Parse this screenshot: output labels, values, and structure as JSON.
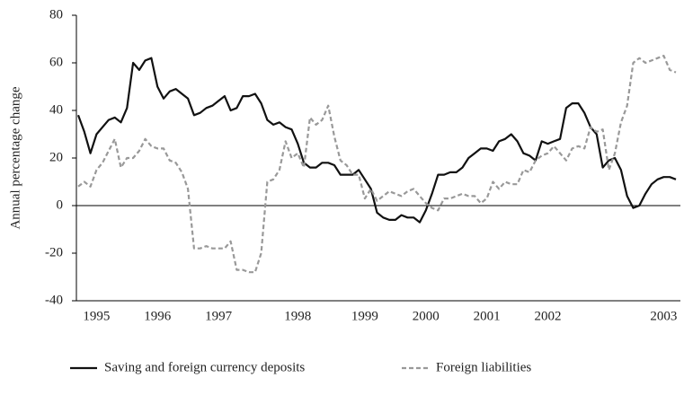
{
  "chart_data": {
    "type": "line",
    "y_label": "Annual percentage change",
    "categories": [
      null,
      null,
      null,
      "1995",
      null,
      null,
      null,
      null,
      null,
      null,
      null,
      null,
      null,
      "1996",
      null,
      null,
      null,
      null,
      null,
      null,
      null,
      null,
      null,
      "1997",
      null,
      null,
      null,
      null,
      null,
      null,
      null,
      null,
      null,
      null,
      null,
      null,
      "1998",
      null,
      null,
      null,
      null,
      null,
      null,
      null,
      null,
      null,
      null,
      "1999",
      null,
      null,
      null,
      null,
      null,
      null,
      null,
      null,
      null,
      "2000",
      null,
      null,
      null,
      null,
      null,
      null,
      null,
      null,
      null,
      "2001",
      null,
      null,
      null,
      null,
      null,
      null,
      null,
      null,
      null,
      "2002",
      null,
      null,
      null,
      null,
      null,
      null,
      null,
      null,
      null,
      null,
      null,
      null,
      null,
      null,
      null,
      null,
      null,
      null,
      "2003",
      null,
      null
    ],
    "series": [
      {
        "name": "Saving and foreign currency deposits",
        "color": "#111111",
        "dash": false,
        "values": [
          38,
          31,
          22,
          30,
          33,
          36,
          37,
          35,
          41,
          60,
          57,
          61,
          62,
          50,
          45,
          48,
          49,
          47,
          45,
          38,
          39,
          41,
          42,
          44,
          46,
          40,
          41,
          46,
          46,
          47,
          43,
          36,
          34,
          35,
          33,
          32,
          26,
          18,
          16,
          16,
          18,
          18,
          17,
          13,
          13,
          13,
          15,
          11,
          7,
          -3,
          -5,
          -6,
          -6,
          -4,
          -5,
          -5,
          -7,
          -2,
          5,
          13,
          13,
          14,
          14,
          16,
          20,
          22,
          24,
          24,
          23,
          27,
          28,
          30,
          27,
          22,
          21,
          19,
          27,
          26,
          27,
          28,
          41,
          43,
          43,
          39,
          33,
          30,
          16,
          19,
          20,
          15,
          4,
          -1,
          0,
          5,
          9,
          11,
          12,
          12,
          11
        ]
      },
      {
        "name": "Foreign liabilities",
        "color": "#999999",
        "dash": true,
        "values": [
          8,
          10,
          8,
          15,
          18,
          23,
          28,
          16,
          20,
          20,
          23,
          28,
          25,
          24,
          24,
          19,
          18,
          14,
          7,
          -18,
          -18,
          -17,
          -18,
          -18,
          -18,
          -15,
          -27,
          -27,
          -28,
          -28,
          -20,
          10,
          11,
          15,
          27,
          20,
          22,
          16,
          37,
          34,
          36,
          42,
          29,
          19,
          17,
          13,
          13,
          3,
          7,
          2,
          4,
          6,
          5,
          4,
          6,
          7,
          4,
          1,
          -1,
          -2,
          3,
          3,
          4,
          5,
          4,
          4,
          1,
          3,
          10,
          7,
          10,
          9,
          9,
          15,
          14,
          19,
          21,
          22,
          25,
          22,
          19,
          24,
          25,
          24,
          33,
          31,
          32,
          15,
          22,
          35,
          42,
          60,
          62,
          60,
          61,
          62,
          63,
          57,
          56
        ]
      }
    ],
    "ylim": [
      -40,
      80
    ],
    "yticks": [
      -40,
      -20,
      0,
      20,
      40,
      60,
      80
    ]
  }
}
